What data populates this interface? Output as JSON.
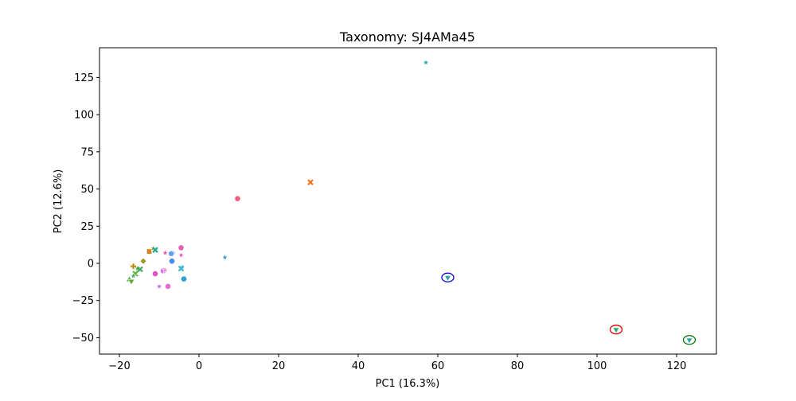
{
  "chart_data": {
    "type": "scatter",
    "title": "Taxonomy: SJ4AMa45",
    "xlabel": "PC1 (16.3%)",
    "ylabel": "PC2 (12.6%)",
    "xlim": [
      -25,
      130
    ],
    "ylim": [
      -61,
      145
    ],
    "xticks": [
      -20,
      0,
      20,
      40,
      60,
      80,
      100,
      120
    ],
    "yticks": [
      -50,
      -25,
      0,
      25,
      50,
      75,
      100,
      125
    ],
    "xtick_labels": [
      "−20",
      "0",
      "20",
      "40",
      "60",
      "80",
      "100",
      "120"
    ],
    "ytick_labels": [
      "−50",
      "−25",
      "0",
      "25",
      "50",
      "75",
      "100",
      "125"
    ],
    "grid": false,
    "legend": "none",
    "points": [
      {
        "x": 57,
        "y": 135,
        "marker": "star",
        "color": "#22a6b8"
      },
      {
        "x": 28,
        "y": 54.5,
        "marker": "x",
        "color": "#f2711c"
      },
      {
        "x": 9.7,
        "y": 43.5,
        "marker": "circle",
        "color": "#f0607a"
      },
      {
        "x": 6.5,
        "y": 4,
        "marker": "star",
        "color": "#3a9ad9"
      },
      {
        "x": 62.5,
        "y": -9.5,
        "marker": "tri_down",
        "color": "#2aa8a0",
        "highlight": "#0000cc"
      },
      {
        "x": 104.8,
        "y": -44.5,
        "marker": "tri_down",
        "color": "#2aa870",
        "highlight": "#dd0000"
      },
      {
        "x": 123.2,
        "y": -51.5,
        "marker": "tri_down",
        "color": "#2aa8a0",
        "highlight": "#007700"
      },
      {
        "x": -4.5,
        "y": 10.5,
        "marker": "circle",
        "color": "#e55fb5"
      },
      {
        "x": -6.5,
        "y": 7,
        "marker": "star",
        "color": "#6b8ff5"
      },
      {
        "x": -7,
        "y": 6.5,
        "marker": "pentagon",
        "color": "#5ea2f0"
      },
      {
        "x": -4.5,
        "y": 5.5,
        "marker": "star",
        "color": "#e55fb5"
      },
      {
        "x": -8.5,
        "y": 7,
        "marker": "star",
        "color": "#e55fb5"
      },
      {
        "x": -6.8,
        "y": 1.5,
        "marker": "hexagon",
        "color": "#4a8cf5"
      },
      {
        "x": -4.2,
        "y": -2.5,
        "marker": "star",
        "color": "#5ab0e0"
      },
      {
        "x": -4.5,
        "y": -3.5,
        "marker": "x",
        "color": "#40b8d0"
      },
      {
        "x": -3.8,
        "y": -10.5,
        "marker": "hexagon",
        "color": "#2e9fd0"
      },
      {
        "x": -9,
        "y": -5,
        "marker": "circle",
        "color": "#d570f0"
      },
      {
        "x": -8.5,
        "y": -4.5,
        "marker": "star",
        "color": "#f08ad0"
      },
      {
        "x": -11,
        "y": -7,
        "marker": "circle",
        "color": "#e055c0"
      },
      {
        "x": -7.8,
        "y": -15.5,
        "marker": "circle",
        "color": "#e86ad0"
      },
      {
        "x": -10,
        "y": -15.5,
        "marker": "star",
        "color": "#b070f0"
      },
      {
        "x": -12.5,
        "y": 8,
        "marker": "square",
        "color": "#d98020"
      },
      {
        "x": -11.5,
        "y": 10,
        "marker": "star",
        "color": "#a4a820"
      },
      {
        "x": -11,
        "y": 9,
        "marker": "x",
        "color": "#2aa890"
      },
      {
        "x": -14,
        "y": 1.5,
        "marker": "diamond",
        "color": "#9a9a20"
      },
      {
        "x": -16.5,
        "y": -2,
        "marker": "plus",
        "color": "#c0901a"
      },
      {
        "x": -15.5,
        "y": -3.5,
        "marker": "star",
        "color": "#60a840"
      },
      {
        "x": -14.8,
        "y": -4,
        "marker": "x",
        "color": "#3aaa60"
      },
      {
        "x": -16,
        "y": -7,
        "marker": "x",
        "color": "#5ab040"
      },
      {
        "x": -16.5,
        "y": -8.5,
        "marker": "star",
        "color": "#40b060"
      },
      {
        "x": -17.5,
        "y": -11,
        "marker": "triangle",
        "color": "#40b040"
      },
      {
        "x": -17,
        "y": -12,
        "marker": "tri_down",
        "color": "#60a830"
      }
    ]
  }
}
